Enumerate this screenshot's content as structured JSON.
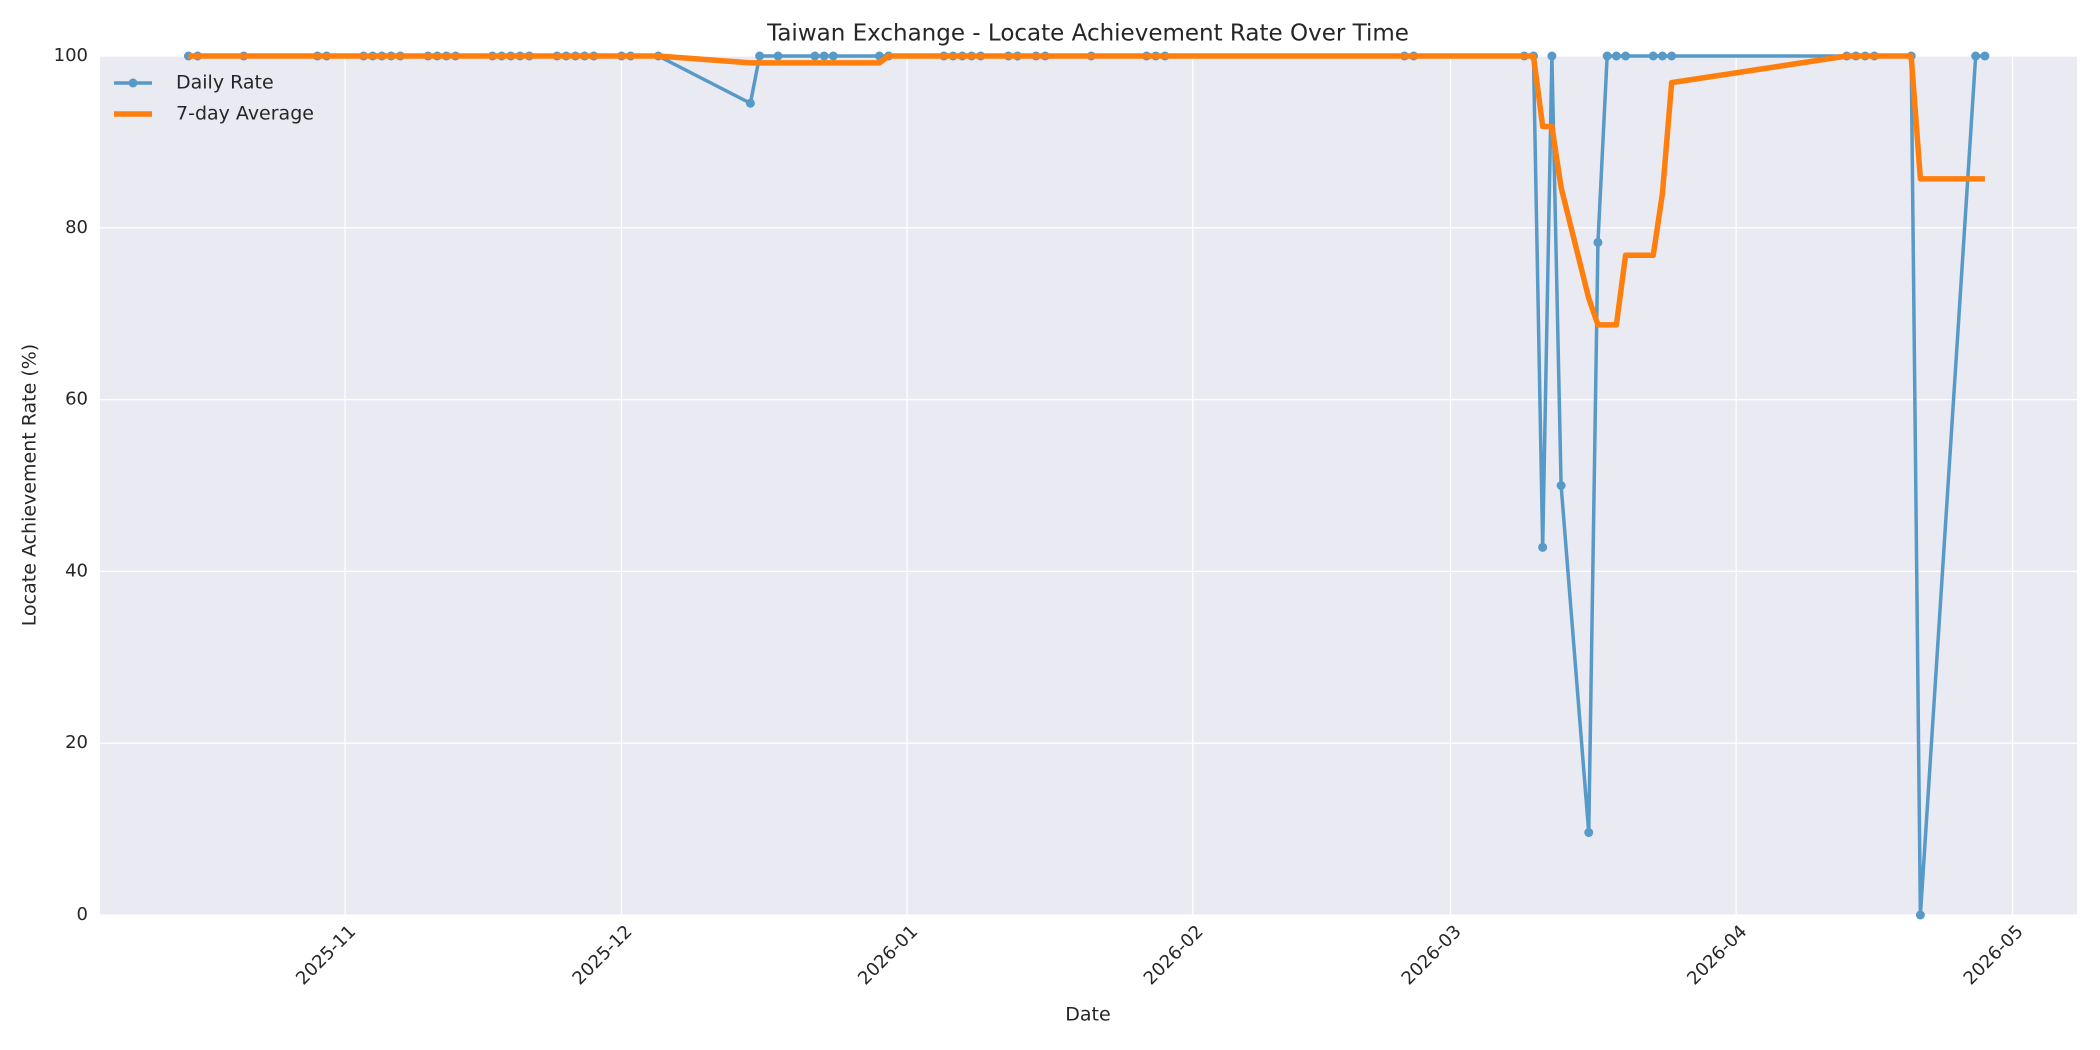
{
  "chart_data": {
    "type": "line",
    "title": "Taiwan Exchange - Locate Achievement Rate Over Time",
    "x_label": "Date",
    "y_label": "Locate Achievement Rate (%)",
    "x": [
      20376,
      20377,
      20382,
      20390,
      20391,
      20395,
      20396,
      20397,
      20398,
      20399,
      20402,
      20403,
      20404,
      20405,
      20409,
      20410,
      20411,
      20412,
      20413,
      20416,
      20417,
      20418,
      20419,
      20420,
      20423,
      20424,
      20427,
      20437,
      20438,
      20440,
      20444,
      20445,
      20446,
      20451,
      20452,
      20458,
      20459,
      20460,
      20461,
      20462,
      20465,
      20466,
      20468,
      20469,
      20474,
      20480,
      20481,
      20482,
      20508,
      20509,
      20521,
      20522,
      20523,
      20524,
      20525,
      20528,
      20529,
      20530,
      20531,
      20532,
      20535,
      20536,
      20537,
      20556,
      20557,
      20558,
      20559,
      20563,
      20564,
      20570,
      20571
    ],
    "series": [
      {
        "name": "Daily Rate",
        "color": "#5799c7",
        "marker": true,
        "values": [
          100,
          100,
          100,
          100,
          100,
          100,
          100,
          100,
          100,
          100,
          100,
          100,
          100,
          100,
          100,
          100,
          100,
          100,
          100,
          100,
          100,
          100,
          100,
          100,
          100,
          100,
          100,
          94.5,
          100,
          100,
          100,
          100,
          100,
          100,
          100,
          100,
          100,
          100,
          100,
          100,
          100,
          100,
          100,
          100,
          100,
          100,
          100,
          100,
          100,
          100,
          100,
          100,
          42.8,
          100,
          50,
          9.6,
          78.3,
          100,
          100,
          100,
          100,
          100,
          100,
          100,
          100,
          100,
          100,
          100,
          0,
          100,
          100
        ]
      },
      {
        "name": "7-day Average",
        "color": "#ff7f0e",
        "marker": false,
        "values": [
          100,
          100,
          100,
          100,
          100,
          100,
          100,
          100,
          100,
          100,
          100,
          100,
          100,
          100,
          100,
          100,
          100,
          100,
          100,
          100,
          100,
          100,
          100,
          100,
          100,
          100,
          100,
          99.2,
          99.2,
          99.2,
          99.2,
          99.2,
          99.2,
          99.2,
          100,
          100,
          100,
          100,
          100,
          100,
          100,
          100,
          100,
          100,
          100,
          100,
          100,
          100,
          100,
          100,
          100,
          100,
          91.8,
          91.8,
          84.7,
          71.8,
          68.7,
          68.7,
          68.7,
          76.8,
          76.8,
          84.0,
          96.9,
          100,
          100,
          100,
          100,
          100,
          85.7,
          85.7,
          85.7
        ]
      }
    ],
    "xlim": [
      20366.4,
      20581.0
    ],
    "xticks": [
      {
        "value": 20393,
        "label": "2025-11"
      },
      {
        "value": 20423,
        "label": "2025-12"
      },
      {
        "value": 20454,
        "label": "2026-01"
      },
      {
        "value": 20485,
        "label": "2026-02"
      },
      {
        "value": 20513,
        "label": "2026-03"
      },
      {
        "value": 20544,
        "label": "2026-04"
      },
      {
        "value": 20574,
        "label": "2026-05"
      }
    ],
    "ylim": [
      0,
      100
    ],
    "yticks": [
      0,
      20,
      40,
      60,
      80,
      100
    ],
    "grid": true,
    "legend": "upper left"
  }
}
